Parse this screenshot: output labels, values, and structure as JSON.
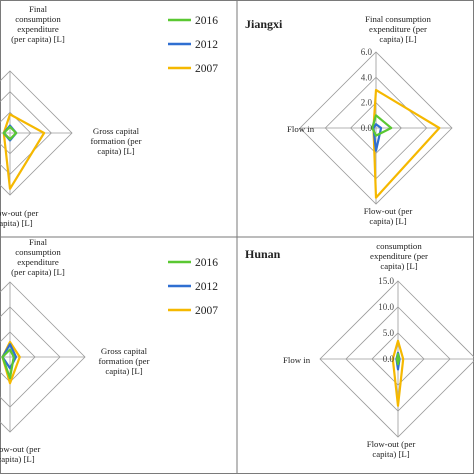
{
  "figure": {
    "colors": {
      "2016": "#5ac832",
      "2012": "#2f6fd1",
      "2007": "#f5b800",
      "grid": "#9a9a9a",
      "border": "#7a7a7a"
    }
  },
  "chart_data": [
    {
      "type": "radar",
      "panel": "top-left",
      "title": "",
      "axes": [
        "Final consumption expenditure (per capita) [L]",
        "Gross capital formation (per capita) [L]",
        "Flow-out (per capita) [L]",
        ""
      ],
      "axis_label_lines": {
        "top": [
          "Final",
          "consumption",
          "expenditure",
          "(per capita) [L]"
        ],
        "right": [
          "Gross capital",
          "formation (per",
          "capita) [L]"
        ],
        "bottom": [
          "Flow-out (per",
          "capita) [L]"
        ]
      },
      "legend": {
        "position": "top-right",
        "entries": [
          "2016",
          "2012",
          "2007"
        ]
      },
      "series": [
        {
          "name": "2016",
          "values": [
            0.1,
            0.1,
            0.1,
            0.1
          ]
        },
        {
          "name": "2012",
          "values": [
            0.12,
            0.1,
            0.12,
            0.1
          ]
        },
        {
          "name": "2007",
          "values": [
            0.3,
            0.55,
            0.9,
            0.1
          ]
        }
      ]
    },
    {
      "type": "radar",
      "panel": "top-right",
      "title": "Jiangxi",
      "axes": [
        "Final consumption expenditure (per capita) [L]",
        "",
        "Flow-out (per capita) [L]",
        "Flow in"
      ],
      "axis_label_lines": {
        "top": [
          "Final consumption",
          "expenditure (per",
          "capita) [L]"
        ],
        "bottom": [
          "Flow-out (per",
          "capita) [L]"
        ],
        "left": [
          "Flow in"
        ]
      },
      "ticks": [
        "0.0",
        "2.0",
        "4.0",
        "6.0"
      ],
      "rlim": [
        0,
        6
      ],
      "series": [
        {
          "name": "2016",
          "values": [
            1.0,
            1.2,
            0.6,
            0.3
          ]
        },
        {
          "name": "2012",
          "values": [
            0.3,
            0.4,
            1.8,
            0.2
          ]
        },
        {
          "name": "2007",
          "values": [
            3.0,
            5.0,
            5.5,
            0.2
          ]
        }
      ]
    },
    {
      "type": "radar",
      "panel": "bottom-left",
      "title": "",
      "axes": [
        "Final consumption expenditure (per capita) [L]",
        "Gross capital formation (per capita) [L]",
        "Flow-out (per capita) [L]",
        ""
      ],
      "axis_label_lines": {
        "top": [
          "Final",
          "consumption",
          "expenditure",
          "(per capita) [L]"
        ],
        "right": [
          "Gross capital",
          "formation (per",
          "capita) [L]"
        ],
        "bottom": [
          "Flow-out (per",
          "capita) [L]"
        ]
      },
      "legend": {
        "position": "top-right",
        "entries": [
          "2016",
          "2012",
          "2007"
        ]
      },
      "series": [
        {
          "name": "2016",
          "values": [
            0.1,
            0.05,
            0.28,
            0.1
          ]
        },
        {
          "name": "2012",
          "values": [
            0.17,
            0.08,
            0.15,
            0.1
          ]
        },
        {
          "name": "2007",
          "values": [
            0.2,
            0.13,
            0.35,
            0.1
          ]
        }
      ]
    },
    {
      "type": "radar",
      "panel": "bottom-right",
      "title": "Hunan",
      "axes": [
        "consumption expenditure (per capita) [L]",
        "",
        "Flow-out (per capita) [L]",
        "Flow in"
      ],
      "axis_label_lines": {
        "top": [
          "consumption",
          "expenditure (per",
          "capita) [L]"
        ],
        "bottom": [
          "Flow-out (per",
          "capita) [L]"
        ],
        "left": [
          "Flow in"
        ]
      },
      "ticks": [
        "0.0",
        "5.0",
        "10.0",
        "15.0"
      ],
      "rlim": [
        0,
        15
      ],
      "series": [
        {
          "name": "2016",
          "values": [
            1.0,
            0.2,
            1.0,
            0.2
          ]
        },
        {
          "name": "2012",
          "values": [
            1.2,
            0.3,
            2.0,
            0.3
          ]
        },
        {
          "name": "2007",
          "values": [
            3.5,
            1.0,
            9.0,
            1.0
          ]
        }
      ]
    }
  ]
}
